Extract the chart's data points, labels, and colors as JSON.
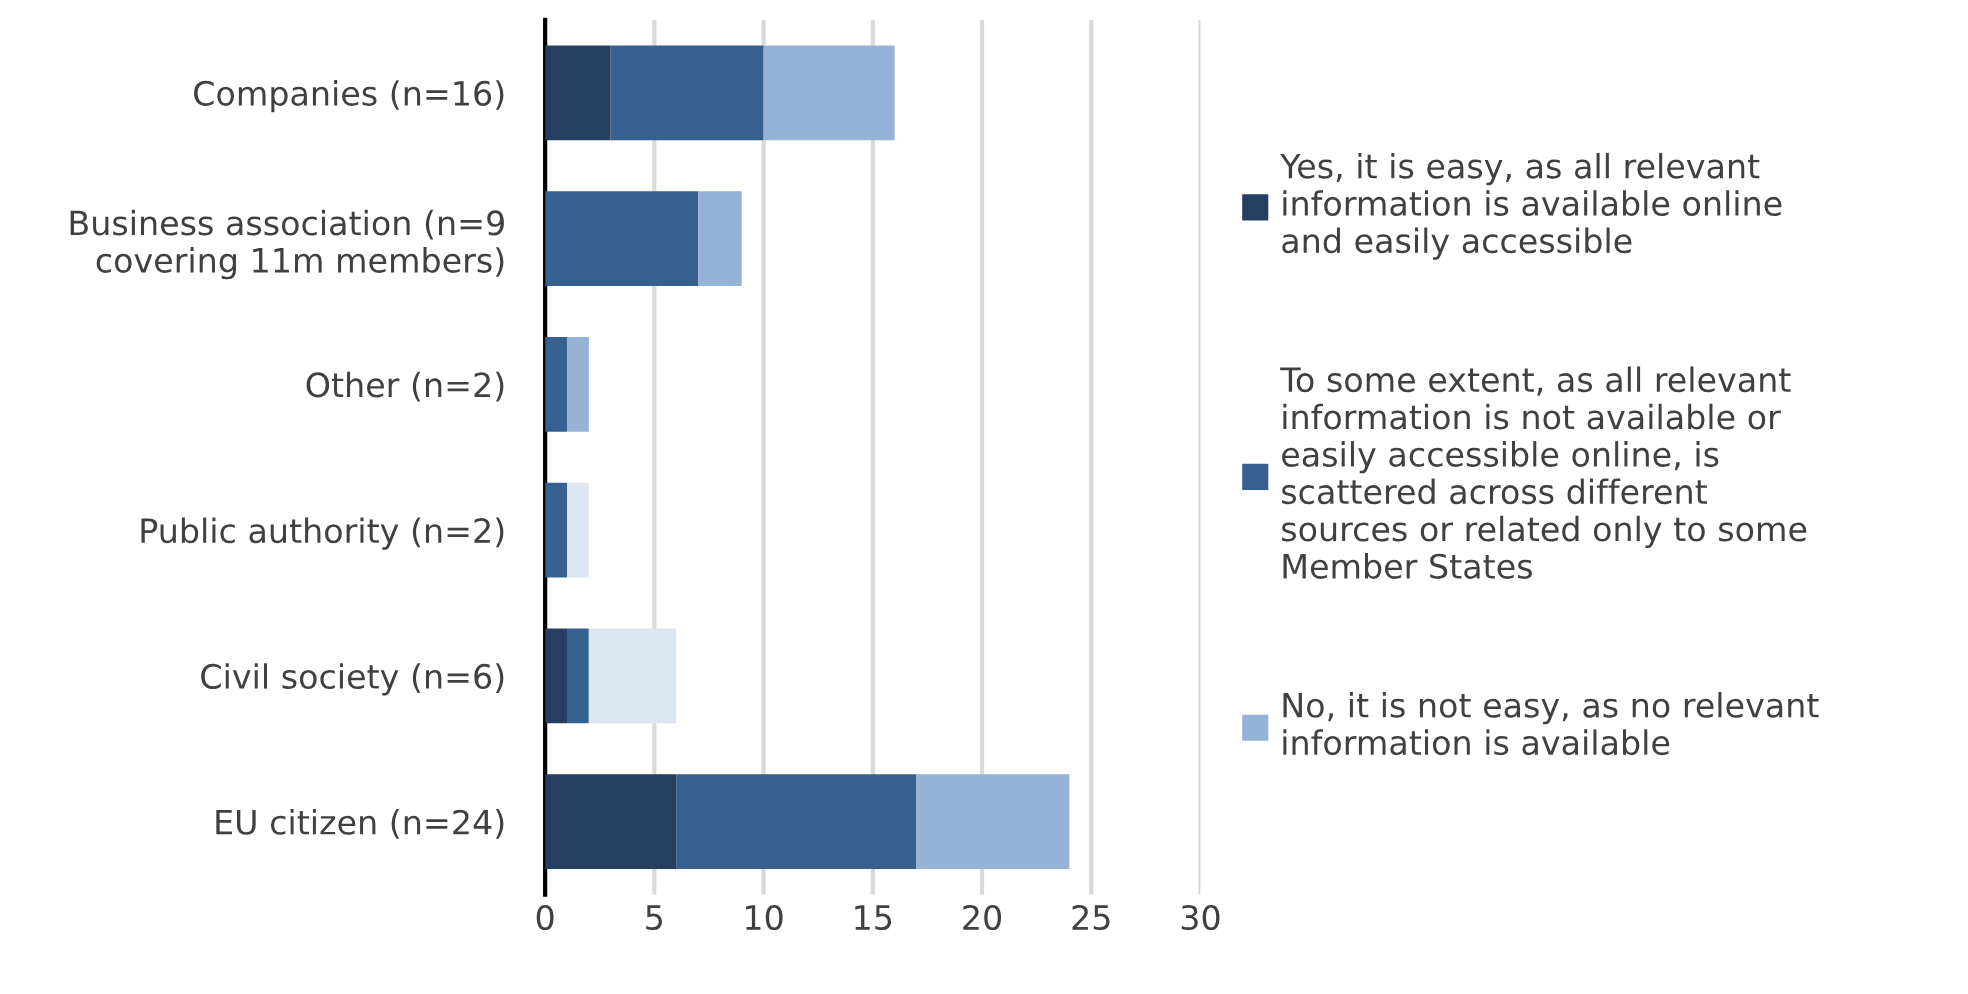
{
  "chart_data": {
    "type": "bar",
    "orientation": "horizontal",
    "stacked": true,
    "categories": [
      "Companies (n=16)",
      "Business association (n=9\ncovering 11m members)",
      "Other (n=2)",
      "Public authority (n=2)",
      "Civil society (n=6)",
      "EU citizen (n=24)"
    ],
    "series": [
      {
        "name": "Yes, it is easy, as all relevant\ninformation is available online\nand easily accessible",
        "color": "#253f60",
        "values": [
          3,
          0,
          0,
          0,
          1,
          6
        ]
      },
      {
        "name": "To some extent, as all relevant\ninformation is not available or\neasily accessible online, is\nscattered across different\nsources or related only to some\nMember States",
        "color": "#36608e",
        "values": [
          7,
          7,
          1,
          1,
          1,
          11
        ]
      },
      {
        "name": "No, it is not easy, as no relevant\ninformation is available",
        "color": "#95b3d7",
        "values": [
          6,
          2,
          1,
          0,
          0,
          7
        ]
      },
      {
        "color": "#dce6f2",
        "values": [
          0,
          0,
          0,
          1,
          4,
          0
        ]
      }
    ],
    "xlim": [
      0,
      30
    ],
    "xticks": [
      0,
      5,
      10,
      15,
      20,
      25,
      30
    ],
    "grid": "x",
    "legend": "right"
  }
}
